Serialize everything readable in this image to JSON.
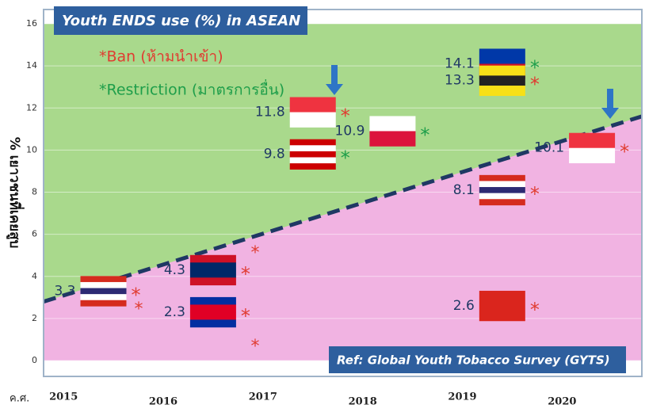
{
  "chart_data": {
    "type": "scatter",
    "title": "Youth ENDS use (%) in ASEAN",
    "source": "Ref: Global Youth Tobacco Survey (GYTS)",
    "y_label": "% เยาวชนที่เคยสูบ",
    "x_label": "ค.ศ.",
    "legend": [
      {
        "label": "*Ban (ห้ามนำเข้า)",
        "color": "#e03c31"
      },
      {
        "label": "*Restriction (มาตรการอื่น)",
        "color": "#1e9e4a"
      }
    ],
    "xlim": [
      2014.8,
      2020.8
    ],
    "ylim": [
      0,
      16
    ],
    "xticks": [
      2015,
      2016,
      2017,
      2018,
      2019,
      2020
    ],
    "yticks": [
      0,
      2,
      4,
      6,
      8,
      10,
      12,
      14,
      16
    ],
    "points": [
      {
        "x": 2015.4,
        "y": 3.3,
        "flag_colors": [
          "#d52b1e",
          "#ffffff",
          "#2d2a73",
          "#ffffff",
          "#d52b1e"
        ],
        "marker_color": "#e03c31"
      },
      {
        "x": 2016.5,
        "y": 4.3,
        "flag_colors": [
          "#ce1126",
          "#002868",
          "#002868",
          "#ce1126"
        ],
        "marker_color": "#e03c31"
      },
      {
        "x": 2016.5,
        "y": 2.3,
        "flag_colors": [
          "#032ea1",
          "#e00025",
          "#e00025",
          "#032ea1"
        ],
        "marker_color": "#e03c31"
      },
      {
        "x": 2017.5,
        "y": 11.8,
        "flag_colors": [
          "#ef3340",
          "#ffffff"
        ],
        "marker_color": "#e03c31"
      },
      {
        "x": 2017.5,
        "y": 9.8,
        "flag_colors": [
          "#cc0001",
          "#ffffff",
          "#cc0001",
          "#ffffff",
          "#cc0001"
        ],
        "marker_color": "#1e9e4a"
      },
      {
        "x": 2018.3,
        "y": 10.9,
        "flag_colors": [
          "#ffffff",
          "#dc143c"
        ],
        "marker_color": "#1e9e4a"
      },
      {
        "x": 2019.4,
        "y": 14.1,
        "flag_colors": [
          "#0038a8",
          "#ce1126"
        ],
        "marker_color": "#1e9e4a"
      },
      {
        "x": 2019.4,
        "y": 13.3,
        "flag_colors": [
          "#f7e017",
          "#222222",
          "#f7e017"
        ],
        "marker_color": "#e03c31"
      },
      {
        "x": 2019.4,
        "y": 8.1,
        "flag_colors": [
          "#d52b1e",
          "#ffffff",
          "#2d2a73",
          "#ffffff",
          "#d52b1e"
        ],
        "marker_color": "#e03c31"
      },
      {
        "x": 2019.4,
        "y": 2.6,
        "flag_colors": [
          "#da251d"
        ],
        "marker_color": "#e03c31"
      },
      {
        "x": 2020.3,
        "y": 10.1,
        "flag_colors": [
          "#ef3340",
          "#ffffff"
        ],
        "marker_color": "#e03c31"
      }
    ],
    "trend": {
      "x": [
        2014.8,
        2020.8
      ],
      "y": [
        2.8,
        11.6
      ],
      "color": "#1f3864"
    },
    "colors": {
      "above": "#a9d98c",
      "below": "#f1b3e2"
    }
  }
}
